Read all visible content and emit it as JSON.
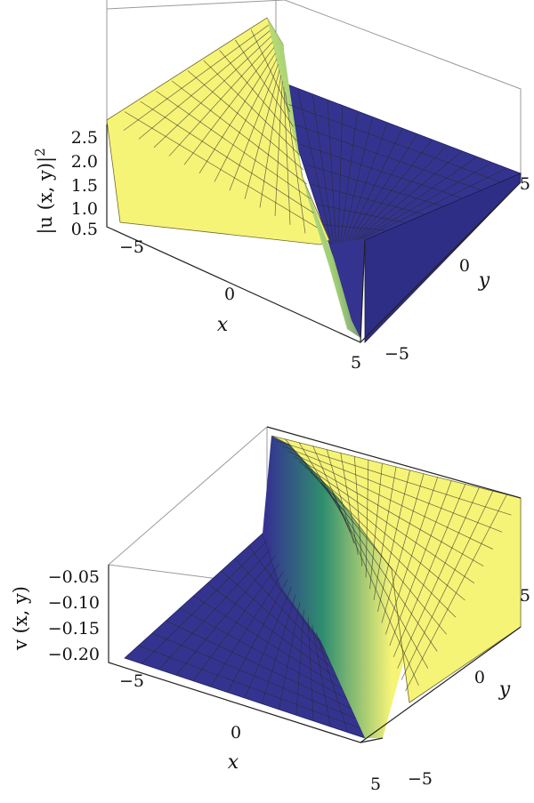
{
  "chart_data": [
    {
      "type": "surface",
      "xlabel": "x",
      "ylabel": "y",
      "zlabel": "|u (x, y)|",
      "zlabel_sup": "2",
      "x_ticks": [
        "−5",
        "0",
        "5"
      ],
      "y_ticks": [
        "5",
        "0",
        "−5"
      ],
      "z_ticks": [
        "2.5",
        "2.0",
        "1.5",
        "1.0",
        "0.5"
      ],
      "xlim": [
        -5,
        5
      ],
      "ylim": [
        -5,
        5
      ],
      "zlim": [
        0.5,
        2.8
      ],
      "high_value": 2.7,
      "low_value": 0.5,
      "colors": {
        "high": "#f6f477",
        "low": "#343490",
        "mid": "#9fcf75"
      }
    },
    {
      "type": "surface",
      "xlabel": "x",
      "ylabel": "y",
      "zlabel": "v (x, y)",
      "x_ticks": [
        "−5",
        "0",
        "5"
      ],
      "y_ticks": [
        "5",
        "0",
        "−5"
      ],
      "z_ticks": [
        "−0.05",
        "−0.10",
        "−0.15",
        "−0.20"
      ],
      "xlim": [
        -5,
        5
      ],
      "ylim": [
        -5,
        5
      ],
      "zlim": [
        -0.2,
        -0.03
      ],
      "high_value": -0.04,
      "low_value": -0.2,
      "colors": {
        "high": "#f6f477",
        "low": "#343490",
        "mid": "#2f8e6f"
      }
    }
  ]
}
